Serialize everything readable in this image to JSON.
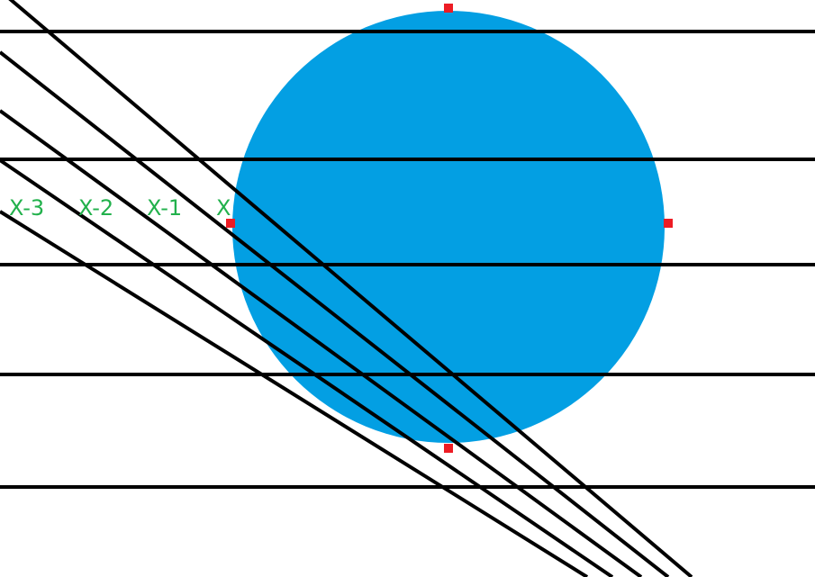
{
  "colors": {
    "background": "#ffffff",
    "circle_fill": "#039fe3",
    "line": "#000000",
    "handle": "#ed1c24",
    "label": "#22b14c"
  },
  "labels": {
    "x_minus_3": "X-3",
    "x_minus_2": "X-2",
    "x_minus_1": "X-1",
    "x": "X"
  }
}
